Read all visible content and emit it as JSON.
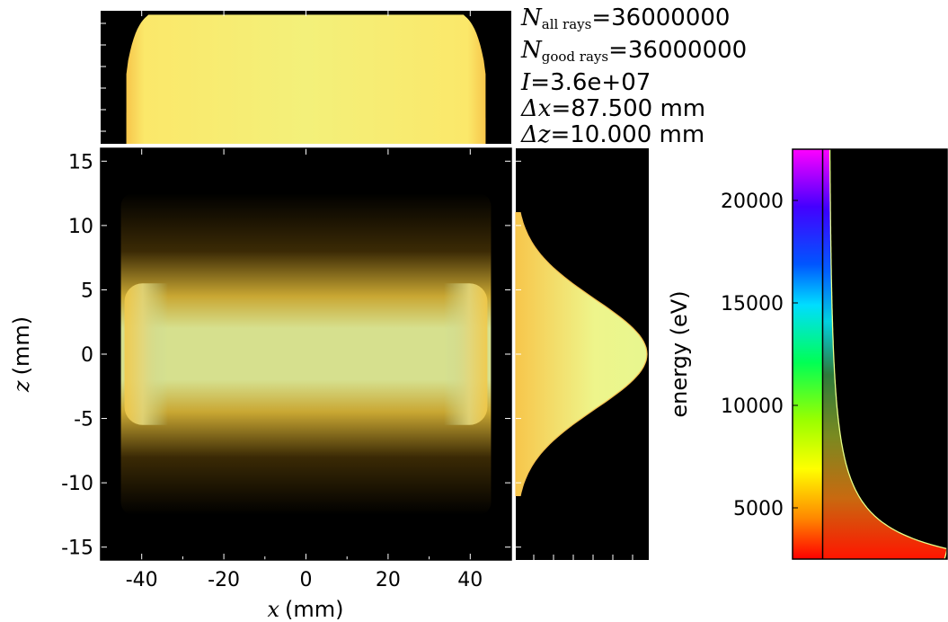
{
  "stats": {
    "n_all_label": "N",
    "n_all_sub": "all rays",
    "n_all_value": "=36000000",
    "n_good_label": "N",
    "n_good_sub": "good rays",
    "n_good_value": "=36000000",
    "intensity_label": "I",
    "intensity_value": "=3.6e+07",
    "dx_label": "Δx",
    "dx_value": "=87.500 mm",
    "dz_label": "Δz",
    "dz_value": "=10.000 mm"
  },
  "colors": {
    "background": "#000000",
    "beam_core": "#cfe38c",
    "beam_edge": "#f2d35a",
    "histogram_fill": "#f4ef70"
  },
  "chart_data": [
    {
      "type": "heatmap",
      "name": "main-2d-map",
      "xlabel_var": "x",
      "xlabel_unit": "(mm)",
      "ylabel_var": "z",
      "ylabel_unit": "(mm)",
      "xlim": [
        -50,
        50
      ],
      "ylim": [
        -16,
        16
      ],
      "xticks": [
        -40,
        -20,
        0,
        20,
        40
      ],
      "yticks": [
        15,
        10,
        5,
        0,
        -5,
        -10,
        -15
      ],
      "beam": {
        "x_range": [
          -43.75,
          43.75
        ],
        "z_fwhm": 10.0,
        "z_center": 0
      }
    },
    {
      "type": "bar",
      "name": "x-histogram",
      "x_range": [
        -43.75,
        43.75
      ],
      "edge_rolloff_mm": 3,
      "relative_height": 0.97
    },
    {
      "type": "line",
      "name": "z-histogram",
      "z_center": 0,
      "z_fwhm": 10.0,
      "z_extent": [
        -11,
        11
      ]
    },
    {
      "type": "area",
      "name": "energy-histogram",
      "ylabel": "energy (eV)",
      "ylim": [
        2500,
        22500
      ],
      "yticks": [
        20000,
        15000,
        10000,
        5000
      ],
      "colorbar_hue": [
        0,
        0.85
      ]
    }
  ]
}
